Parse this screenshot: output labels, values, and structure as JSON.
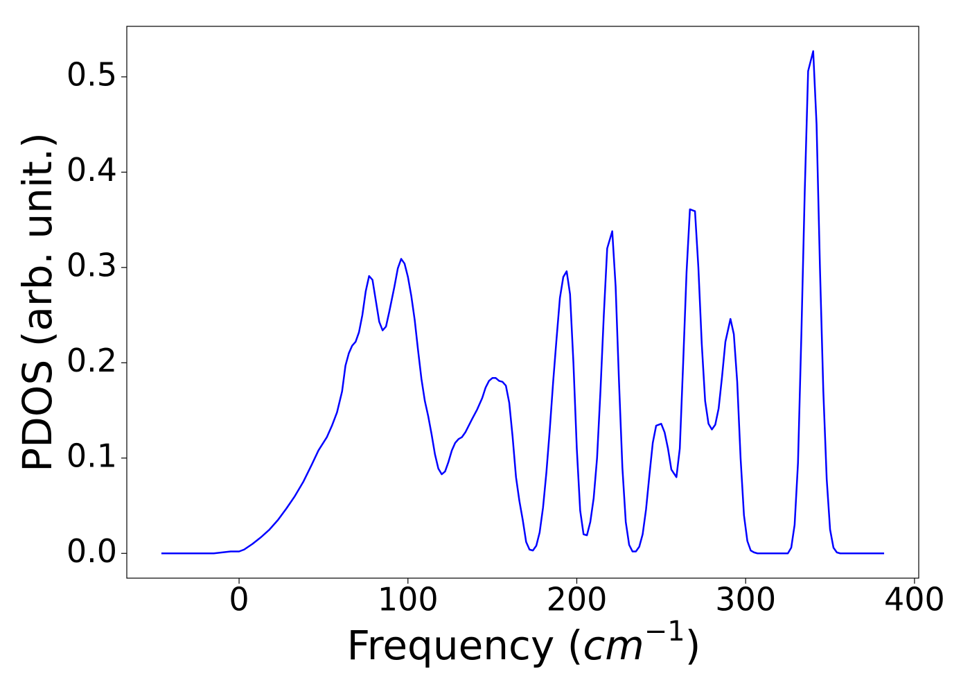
{
  "chart_data": {
    "type": "line",
    "xlabel": [
      "Frequency (",
      "cm",
      "−1",
      ")"
    ],
    "ylabel": "PDOS (arb. unit.)",
    "color": "#0000ff",
    "x": [
      -46,
      -15,
      -10,
      -5,
      0,
      3,
      8,
      13,
      18,
      23,
      28,
      33,
      38,
      43,
      47,
      52,
      55,
      58,
      61,
      63,
      65,
      67,
      69,
      71,
      73,
      75,
      77,
      79,
      81,
      83,
      85,
      87,
      89,
      92,
      94,
      96,
      98,
      100,
      102,
      104,
      106,
      108,
      110,
      112,
      114,
      116,
      118,
      120,
      122,
      124,
      126,
      128,
      130,
      132,
      134,
      136,
      138,
      141,
      144,
      146,
      148,
      150,
      152,
      154,
      156,
      158,
      160,
      162,
      164,
      166,
      168,
      170,
      172,
      174,
      176,
      178,
      180,
      182,
      184,
      186,
      188,
      190,
      192,
      194,
      196,
      198,
      200,
      202,
      204,
      206,
      208,
      210,
      212,
      214,
      216,
      218,
      221,
      223,
      225,
      227,
      229,
      231,
      233,
      235,
      237,
      239,
      241,
      243,
      245,
      247,
      250,
      252,
      254,
      256,
      259,
      261,
      263,
      265,
      267,
      270,
      272,
      274,
      276,
      278,
      280,
      282,
      284,
      286,
      288,
      291,
      293,
      295,
      297,
      299,
      301,
      303,
      305,
      307,
      325,
      327,
      329,
      331,
      333,
      335,
      337,
      340,
      342,
      344,
      346,
      348,
      350,
      352,
      354,
      356,
      382
    ],
    "values": [
      0,
      0,
      0.001,
      0.002,
      0.002,
      0.004,
      0.01,
      0.017,
      0.025,
      0.035,
      0.047,
      0.06,
      0.075,
      0.093,
      0.108,
      0.122,
      0.134,
      0.148,
      0.17,
      0.197,
      0.21,
      0.218,
      0.222,
      0.232,
      0.25,
      0.275,
      0.291,
      0.287,
      0.265,
      0.243,
      0.234,
      0.238,
      0.254,
      0.28,
      0.299,
      0.309,
      0.304,
      0.29,
      0.27,
      0.245,
      0.213,
      0.183,
      0.16,
      0.144,
      0.125,
      0.104,
      0.089,
      0.083,
      0.086,
      0.096,
      0.108,
      0.116,
      0.12,
      0.122,
      0.127,
      0.134,
      0.141,
      0.151,
      0.163,
      0.174,
      0.181,
      0.184,
      0.184,
      0.181,
      0.18,
      0.176,
      0.158,
      0.122,
      0.08,
      0.055,
      0.035,
      0.012,
      0.004,
      0.003,
      0.008,
      0.022,
      0.048,
      0.085,
      0.13,
      0.18,
      0.225,
      0.268,
      0.29,
      0.296,
      0.272,
      0.2,
      0.11,
      0.045,
      0.02,
      0.019,
      0.033,
      0.058,
      0.1,
      0.17,
      0.25,
      0.32,
      0.338,
      0.28,
      0.18,
      0.09,
      0.033,
      0.009,
      0.002,
      0.002,
      0.007,
      0.02,
      0.046,
      0.082,
      0.116,
      0.134,
      0.136,
      0.127,
      0.11,
      0.088,
      0.08,
      0.11,
      0.2,
      0.295,
      0.361,
      0.359,
      0.3,
      0.22,
      0.16,
      0.136,
      0.13,
      0.135,
      0.152,
      0.185,
      0.222,
      0.246,
      0.23,
      0.18,
      0.1,
      0.04,
      0.013,
      0.003,
      0.001,
      0,
      0,
      0.006,
      0.03,
      0.095,
      0.23,
      0.38,
      0.506,
      0.527,
      0.45,
      0.3,
      0.17,
      0.078,
      0.025,
      0.006,
      0.001,
      0,
      0
    ],
    "xlim": [
      -66.5,
      402.5
    ],
    "ylim": [
      -0.026,
      0.553
    ],
    "xticks": [
      0,
      100,
      200,
      300,
      400
    ],
    "yticks": [
      {
        "value": 0,
        "label": "0.0"
      },
      0.1,
      0.2,
      0.3,
      0.4,
      0.5
    ]
  }
}
